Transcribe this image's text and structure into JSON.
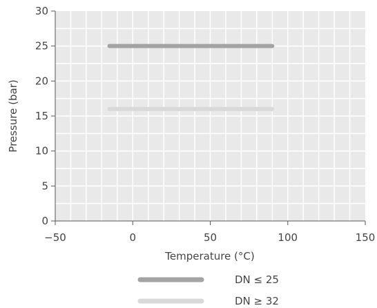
{
  "chart_data": {
    "type": "line",
    "title": "",
    "xlabel": "Temperature (°C)",
    "ylabel": "Pressure (bar)",
    "xlim": [
      -50,
      150
    ],
    "ylim": [
      0,
      30
    ],
    "x_ticks": [
      -50,
      0,
      50,
      100,
      150
    ],
    "y_ticks": [
      0,
      5,
      10,
      15,
      20,
      25,
      30
    ],
    "x_minor_step": 10,
    "y_minor_step": 2.5,
    "grid": true,
    "legend_position": "bottom",
    "series": [
      {
        "name": "DN ≤ 25",
        "x": [
          -15,
          90
        ],
        "y": [
          25,
          25
        ],
        "color": "#a3a3a3"
      },
      {
        "name": "DN ≥ 32",
        "x": [
          -15,
          90
        ],
        "y": [
          16,
          16
        ],
        "color": "#d9d9d9"
      }
    ],
    "colors": {
      "plot_background": "#e9e9e9",
      "grid": "#ffffff",
      "axis": "#555555",
      "text": "#444444"
    }
  }
}
